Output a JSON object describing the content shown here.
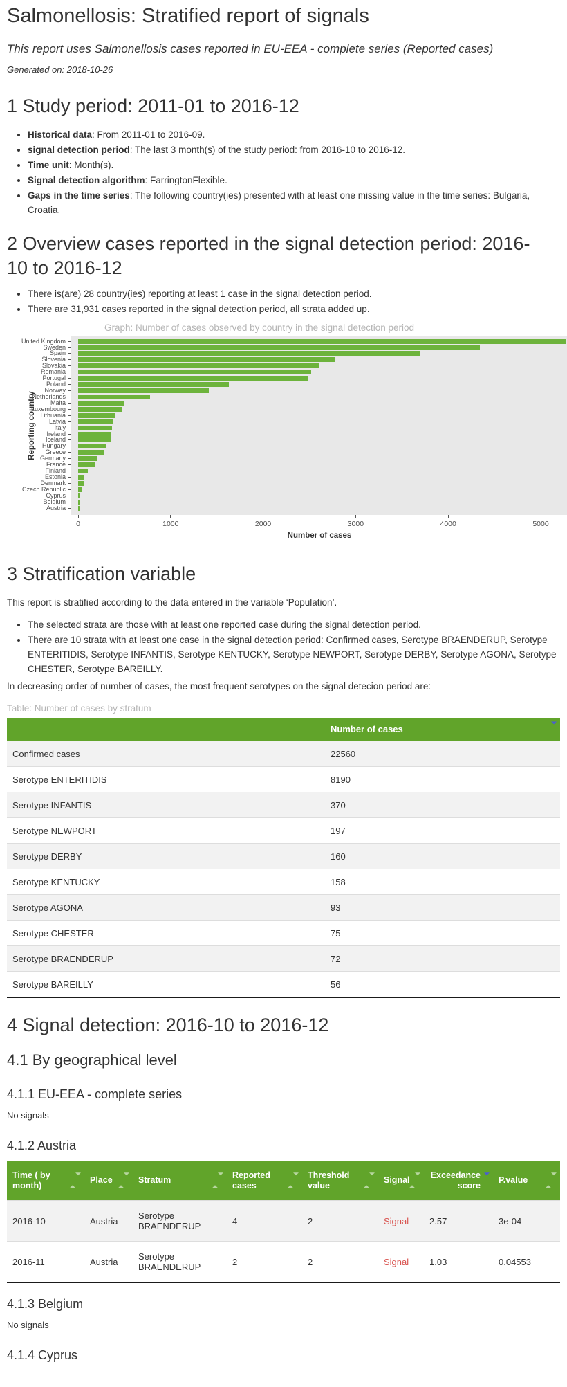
{
  "page": {
    "title": "Salmonellosis: Stratified report of signals",
    "subtitle": "This report uses Salmonellosis cases reported in EU-EEA - complete series (Reported cases)",
    "generated": "Generated on: 2018-10-26"
  },
  "study_period": {
    "heading": "1 Study period: 2011-01 to 2016-12",
    "bullets": [
      {
        "label": "Historical data",
        "text": ": From 2011-01 to 2016-09."
      },
      {
        "label": "signal detection period",
        "text": ": The last 3 month(s) of the study period: from 2016-10 to 2016-12."
      },
      {
        "label": "Time unit",
        "text": ": Month(s)."
      },
      {
        "label": "Signal detection algorithm",
        "text": ": FarringtonFlexible."
      },
      {
        "label": "Gaps in the time series",
        "text": ": The following country(ies) presented with at least one missing value in the time series: Bulgaria, Croatia."
      }
    ]
  },
  "overview": {
    "heading": "2 Overview cases reported in the signal detection period: 2016-10 to 2016-12",
    "bullets": [
      "There is(are) 28 country(ies) reporting at least 1 case in the signal detection period.",
      "There are 31,931 cases reported in the signal detection period, all strata added up."
    ]
  },
  "chart_data": {
    "type": "bar",
    "orientation": "horizontal",
    "title": "Graph: Number of cases observed by country in the signal detection period",
    "xlabel": "Number of cases",
    "ylabel": "Reporting country",
    "xlim": [
      0,
      5300
    ],
    "xticks": [
      0,
      1000,
      2000,
      3000,
      4000,
      5000
    ],
    "grid": false,
    "categories": [
      "United Kingdom",
      "Sweden",
      "Spain",
      "Slovenia",
      "Slovakia",
      "Romania",
      "Portugal",
      "Poland",
      "Norway",
      "Netherlands",
      "Malta",
      "Luxembourg",
      "Lithuania",
      "Latvia",
      "Italy",
      "Ireland",
      "Iceland",
      "Hungary",
      "Greece",
      "Germany",
      "France",
      "Finland",
      "Estonia",
      "Denmark",
      "Czech Republic",
      "Cyprus",
      "Belgium",
      "Austria"
    ],
    "values": [
      5280,
      4340,
      3700,
      2780,
      2600,
      2520,
      2490,
      1630,
      1410,
      780,
      490,
      470,
      400,
      370,
      365,
      355,
      350,
      310,
      285,
      210,
      185,
      105,
      70,
      60,
      35,
      25,
      10,
      8
    ]
  },
  "stratification": {
    "heading": "3 Stratification variable",
    "intro": "This report is stratified according to the data entered in the variable ‘Population’.",
    "bullets": [
      "The selected strata are those with at least one reported case during the signal detection period.",
      "There are 10 strata with at least one case in the signal detection period: Confirmed cases, Serotype BRAENDERUP, Serotype ENTERITIDIS, Serotype INFANTIS, Serotype KENTUCKY, Serotype NEWPORT, Serotype DERBY, Serotype AGONA, Serotype CHESTER, Serotype BAREILLY."
    ],
    "order_note": "In decreasing order of number of cases, the most frequent serotypes on the signal detecion period are:",
    "table_caption": "Table: Number of cases by stratum",
    "table": {
      "value_header": "Number of cases",
      "rows": [
        {
          "stratum": "Confirmed cases",
          "cases": "22560"
        },
        {
          "stratum": "Serotype ENTERITIDIS",
          "cases": "8190"
        },
        {
          "stratum": "Serotype INFANTIS",
          "cases": "370"
        },
        {
          "stratum": "Serotype NEWPORT",
          "cases": "197"
        },
        {
          "stratum": "Serotype DERBY",
          "cases": "160"
        },
        {
          "stratum": "Serotype KENTUCKY",
          "cases": "158"
        },
        {
          "stratum": "Serotype AGONA",
          "cases": "93"
        },
        {
          "stratum": "Serotype CHESTER",
          "cases": "75"
        },
        {
          "stratum": "Serotype BRAENDERUP",
          "cases": "72"
        },
        {
          "stratum": "Serotype BAREILLY",
          "cases": "56"
        }
      ]
    }
  },
  "signal_detection": {
    "heading": "4 Signal detection: 2016-10 to 2016-12",
    "sub_heading": "4.1 By geographical level",
    "sections": [
      {
        "heading": "4.1.1 EU-EEA - complete series",
        "body": "No signals"
      },
      {
        "heading": "4.1.2 Austria",
        "body": ""
      },
      {
        "heading": "4.1.3 Belgium",
        "body": "No signals"
      },
      {
        "heading": "4.1.4 Cyprus",
        "body": ""
      }
    ],
    "signal_table": {
      "columns": [
        "Time ( by month)",
        "Place",
        "Stratum",
        "Reported cases",
        "Threshold value",
        "Signal",
        "Exceedance score",
        "P.value"
      ],
      "sorted_column": "Exceedance score",
      "rows": [
        [
          "2016-10",
          "Austria",
          "Serotype BRAENDERUP",
          "4",
          "2",
          "Signal",
          "2.57",
          "3e-04"
        ],
        [
          "2016-11",
          "Austria",
          "Serotype BRAENDERUP",
          "2",
          "2",
          "Signal",
          "1.03",
          "0.04553"
        ]
      ]
    }
  },
  "colors": {
    "accent_green": "#61a42a",
    "bar_green": "#6db33c",
    "panel_gray": "#e8e8e8",
    "signal_red": "#d9534f",
    "sort_arrow_blue": "#4a5ecf",
    "caption_gray": "#b5b5b5"
  }
}
